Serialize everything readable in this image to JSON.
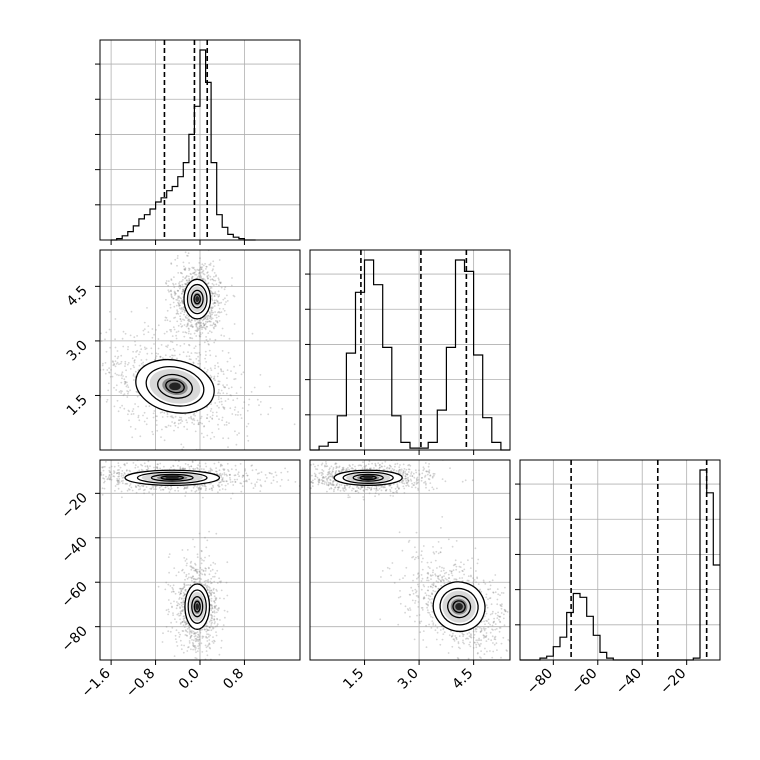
{
  "chart_data": {
    "type": "corner",
    "parameters": [
      {
        "name": "",
        "ticks": [
          -1.6,
          -0.8,
          0.0,
          0.8
        ],
        "tick_labels": [
          "−1.6",
          "−0.8",
          "0.0",
          "0.8"
        ],
        "range": [
          -1.8,
          1.8
        ]
      },
      {
        "name": "",
        "ticks": [
          1.5,
          3.0,
          4.5
        ],
        "tick_labels": [
          "1.5",
          "3.0",
          "4.5"
        ],
        "range": [
          0.0,
          5.5
        ]
      },
      {
        "name": "",
        "ticks": [
          -80,
          -60,
          -40,
          -20
        ],
        "tick_labels": [
          "−80",
          "−60",
          "−40",
          "−20"
        ],
        "range": [
          -95,
          -5
        ]
      }
    ],
    "quantiles": [
      [
        -0.64,
        -0.1,
        0.13
      ],
      [
        1.4,
        3.05,
        4.3
      ],
      [
        -72,
        -33,
        -11
      ]
    ],
    "histograms": [
      {
        "bin_edges": [
          -1.6,
          -1.5,
          -1.4,
          -1.3,
          -1.2,
          -1.1,
          -1.0,
          -0.9,
          -0.8,
          -0.7,
          -0.6,
          -0.5,
          -0.4,
          -0.3,
          -0.2,
          -0.1,
          0.0,
          0.1,
          0.2,
          0.3,
          0.4,
          0.5,
          0.6,
          0.7,
          0.8,
          0.9,
          1.0
        ],
        "counts": [
          0,
          1,
          3,
          6,
          10,
          15,
          18,
          22,
          27,
          30,
          35,
          38,
          45,
          55,
          75,
          95,
          135,
          112,
          55,
          18,
          9,
          4,
          2,
          1,
          0,
          0
        ]
      },
      {
        "bin_edges": [
          0.0,
          0.25,
          0.5,
          0.75,
          1.0,
          1.25,
          1.5,
          1.75,
          2.0,
          2.25,
          2.5,
          2.75,
          3.0,
          3.25,
          3.5,
          3.75,
          4.0,
          4.25,
          4.5,
          4.75,
          5.0,
          5.25,
          5.5
        ],
        "counts": [
          0,
          2,
          4,
          18,
          51,
          83,
          100,
          87,
          54,
          18,
          4,
          1,
          1,
          4,
          21,
          54,
          100,
          94,
          50,
          17,
          4,
          0
        ]
      },
      {
        "bin_edges": [
          -95,
          -92,
          -89,
          -86,
          -83,
          -80,
          -77,
          -74,
          -71,
          -68,
          -65,
          -62,
          -59,
          -56,
          -53,
          -50,
          -47,
          -44,
          -41,
          -38,
          -35,
          -32,
          -29,
          -26,
          -23,
          -20,
          -17,
          -14,
          -11,
          -8,
          -5
        ],
        "counts": [
          0,
          0,
          0,
          1,
          2,
          7,
          12,
          25,
          35,
          33,
          23,
          13,
          4,
          1,
          0,
          0,
          0,
          0,
          0,
          0,
          0,
          0,
          0,
          0,
          0,
          0,
          1,
          100,
          88,
          50
        ]
      }
    ],
    "joint_clusters": [
      {
        "panel": "param2_vs_param1",
        "center": [
          -0.05,
          4.15
        ],
        "spread": [
          0.14,
          0.32
        ]
      },
      {
        "panel": "param2_vs_param1",
        "center": [
          -0.45,
          1.75
        ],
        "spread": [
          0.42,
          0.42
        ]
      },
      {
        "panel": "param3_vs_param1",
        "center": [
          -0.5,
          -13
        ],
        "spread": [
          0.5,
          2
        ]
      },
      {
        "panel": "param3_vs_param1",
        "center": [
          -0.05,
          -71
        ],
        "spread": [
          0.13,
          6
        ]
      },
      {
        "panel": "param3_vs_param2",
        "center": [
          1.6,
          -13
        ],
        "spread": [
          0.55,
          2
        ]
      },
      {
        "panel": "param3_vs_param2",
        "center": [
          4.1,
          -71
        ],
        "spread": [
          0.42,
          6.5
        ]
      }
    ]
  }
}
